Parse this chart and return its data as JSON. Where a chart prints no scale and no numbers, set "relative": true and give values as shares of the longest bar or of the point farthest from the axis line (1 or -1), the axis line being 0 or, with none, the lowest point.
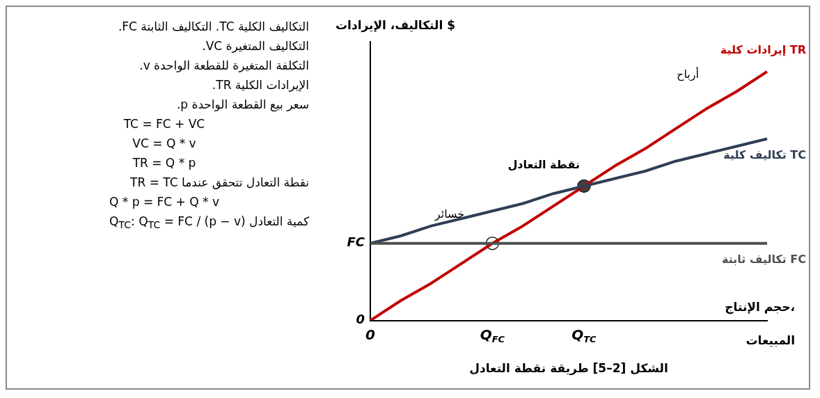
{
  "chart_data": {
    "type": "line",
    "title": "الشكل [2–5] طريقة نقطة التعادل",
    "xlabel": "حجم الإنتاج، المبيعات",
    "ylabel": "التكاليف، الإيرادات $",
    "relative": true,
    "grid": false,
    "legend": false,
    "marker": "none",
    "line_style": "solid",
    "categories": [
      "0",
      null,
      null,
      null,
      "Q$_{FC}$",
      null,
      null,
      "Q$_{TC}$",
      null,
      null,
      null,
      null,
      null,
      null
    ],
    "series": [
      {
        "name": "تكاليف ثابتة FC",
        "color": "#505050",
        "values": [
          0.31,
          0.31,
          0.31,
          0.31,
          0.31,
          0.31,
          0.31,
          0.31,
          0.31,
          0.31,
          0.31,
          0.31,
          0.31,
          0.31
        ]
      },
      {
        "name": "تكاليف كلية TC",
        "color": "#2f3e55",
        "values": [
          0.31,
          0.34,
          0.38,
          0.41,
          0.44,
          0.47,
          0.51,
          0.54,
          0.57,
          0.6,
          0.64,
          0.67,
          0.7,
          0.73
        ]
      },
      {
        "name": "إيرادات كلية TR",
        "color": "#c00000",
        "values": [
          0,
          0.08,
          0.15,
          0.23,
          0.31,
          0.38,
          0.46,
          0.54,
          0.62,
          0.69,
          0.77,
          0.85,
          0.92,
          1
        ]
      },
      {
        "type": "scatter",
        "marker": "circle",
        "color": "#ffffff",
        "values": [
          null,
          null,
          null,
          null,
          0.31,
          null,
          null,
          null,
          null,
          null,
          null,
          null,
          null,
          null
        ]
      },
      {
        "type": "scatter",
        "marker": "circle",
        "color": "#404040",
        "values": [
          null,
          null,
          null,
          null,
          null,
          null,
          null,
          0.54,
          null,
          null,
          null,
          null,
          null,
          null
        ]
      }
    ],
    "annotations": [
      "التكاليف الكلية TC. التكاليف الثابتة FC.",
      "التكاليف المتغيرة VC.",
      "التكلفة المتغيرة للقطعة الواحدة v.",
      "الإيرادات الكلية TR.",
      "سعر بيع القطعة الواحدة p.",
      "TC = FC + VC",
      "VC = Q * v",
      "TR = Q * p",
      "نقطة التعادل تتحقق عندما TR = TC",
      "Q * p = FC + Q * v",
      "كمية التعادل Q$_{TC}$: Q$_{TC}$ = FC / (p − v)",
      {
        "text": "نقطة التعادل",
        "x": "Q$_{TC}$",
        "y": 0.54
      },
      {
        "text": "FC",
        "x": "0",
        "y": 0.31
      },
      {
        "text": "0",
        "x": "0",
        "y": 0
      },
      "خسائر",
      "أرباح"
    ]
  }
}
